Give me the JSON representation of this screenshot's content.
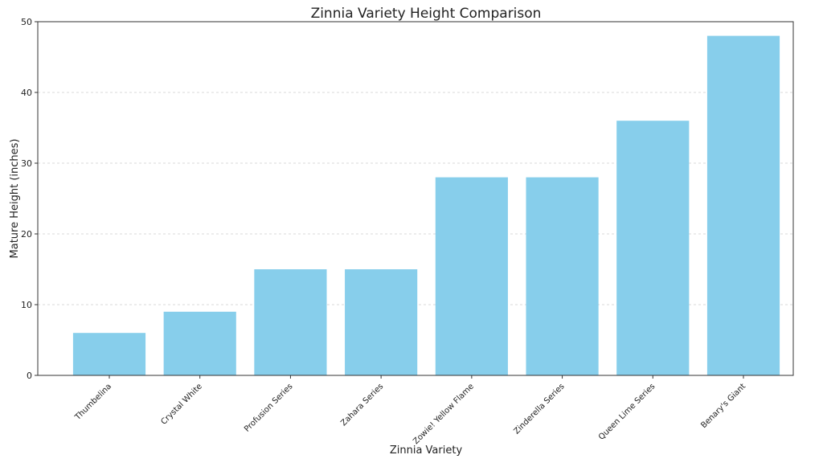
{
  "chart_data": {
    "type": "bar",
    "title": "Zinnia Variety Height Comparison",
    "xlabel": "Zinnia Variety",
    "ylabel": "Mature Height (inches)",
    "categories": [
      "Thumbelina",
      "Crystal White",
      "Profusion Series",
      "Zahara Series",
      "Zowie! Yellow Flame",
      "Zinderella Series",
      "Queen Lime Series",
      "Benary's Giant"
    ],
    "values": [
      6,
      9,
      15,
      15,
      28,
      28,
      36,
      48
    ],
    "ylim": [
      0,
      50
    ],
    "yticks": [
      0,
      10,
      20,
      30,
      40,
      50
    ],
    "grid": "y-dashed",
    "bar_color": "#87CEEB"
  }
}
